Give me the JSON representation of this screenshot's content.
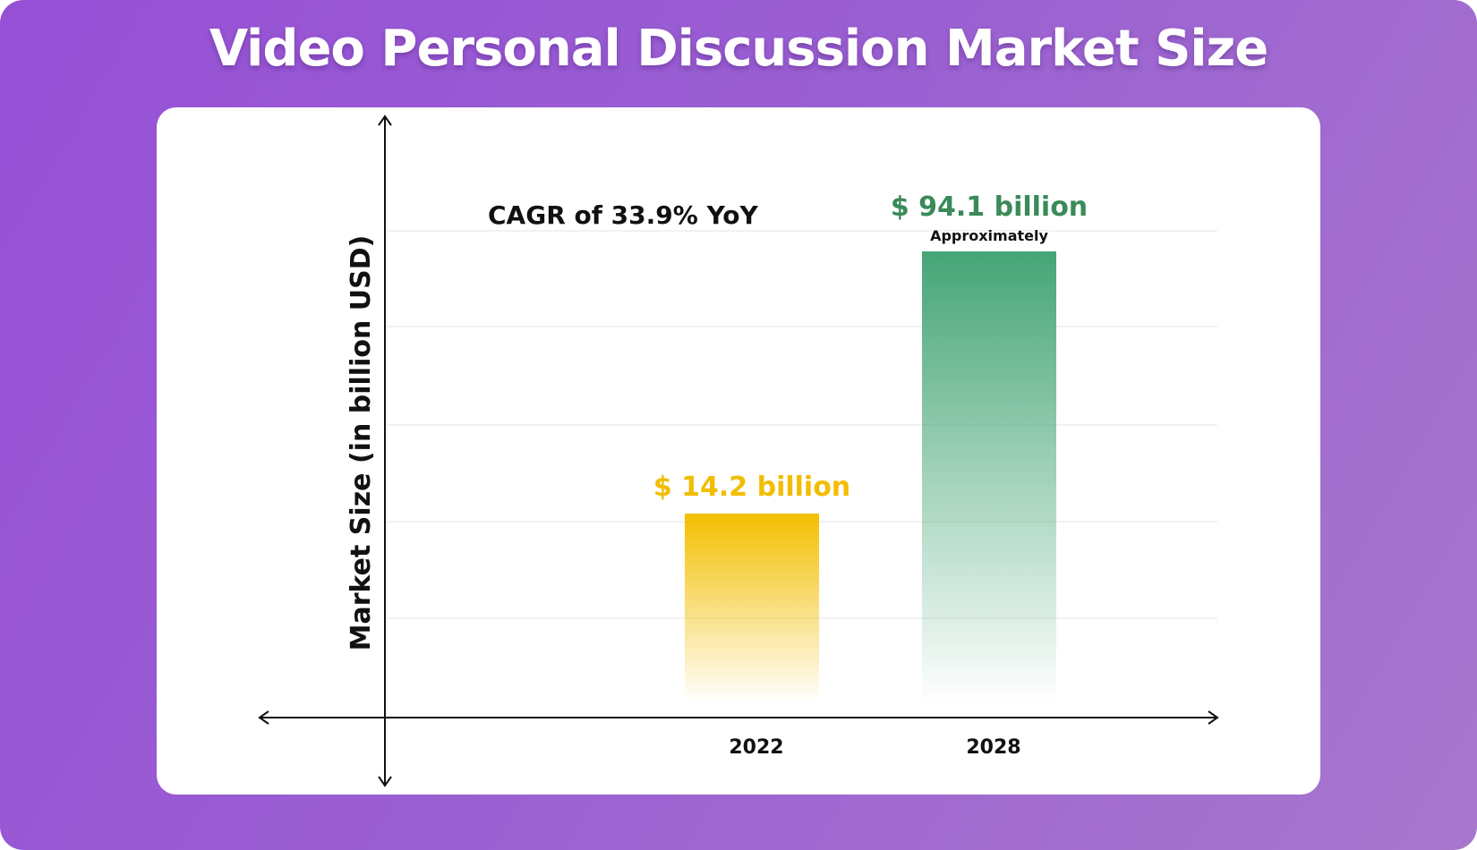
{
  "title": "Video Personal Discussion Market Size",
  "colors": {
    "background_start": "#9650d6",
    "background_end": "#a877cd",
    "bar_2022": "#f3bf00",
    "bar_2028": "#45a576",
    "label_2022": "#f2bd00",
    "label_2028": "#3a8a5a"
  },
  "chart_data": {
    "type": "bar",
    "title": "Video Personal Discussion Market Size",
    "xlabel": "",
    "ylabel": "Market Size (in billion USD)",
    "categories": [
      "2022",
      "2028"
    ],
    "values": [
      14.2,
      94.1
    ],
    "value_labels": [
      "$ 14.2 billion",
      "$ 94.1 billion"
    ],
    "value_sublabels": [
      "",
      "Approximately"
    ],
    "annotation": "CAGR of 33.9% YoY",
    "grid": true,
    "legend": "none"
  }
}
